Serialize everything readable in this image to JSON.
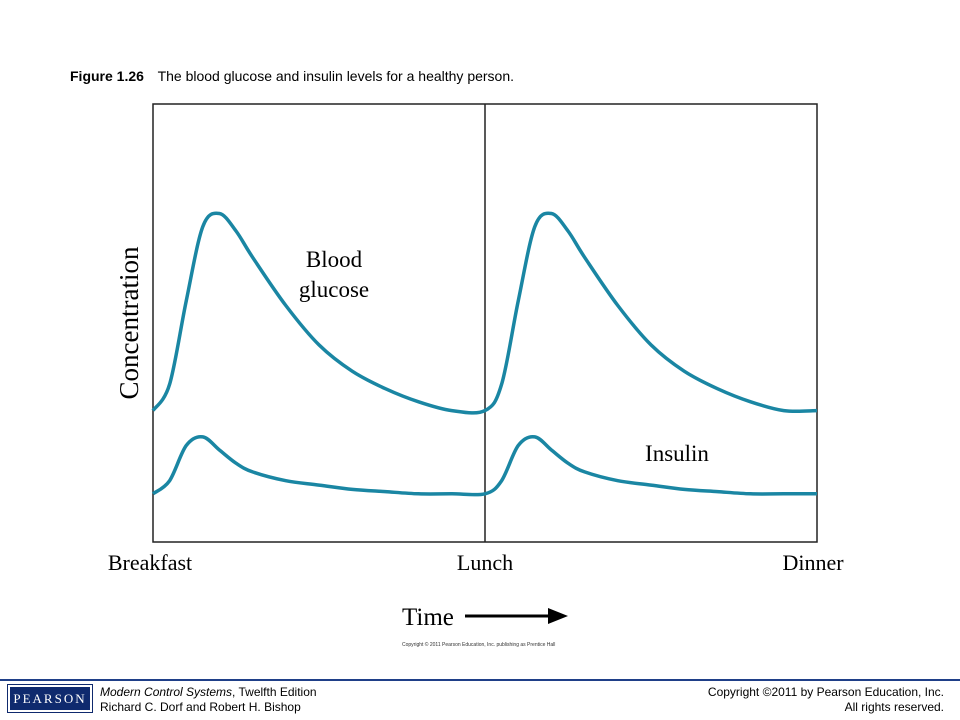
{
  "caption": {
    "figure_number": "Figure 1.26",
    "text": "The blood glucose and insulin levels for a healthy person."
  },
  "chart_data": {
    "type": "line",
    "ylabel": "Concentration",
    "xlabel": "Time",
    "categories": [
      "Breakfast",
      "Lunch",
      "Dinner"
    ],
    "x_range": [
      0,
      2
    ],
    "y_range": [
      0,
      1
    ],
    "grid": false,
    "divider_at": 1,
    "series": [
      {
        "name": "Blood glucose",
        "label_lines": [
          "Blood",
          "glucose"
        ],
        "color": "#1a86a3",
        "x": [
          0.0,
          0.05,
          0.1,
          0.15,
          0.2,
          0.25,
          0.3,
          0.4,
          0.5,
          0.6,
          0.7,
          0.8,
          0.9,
          1.0,
          1.05,
          1.1,
          1.15,
          1.2,
          1.25,
          1.3,
          1.4,
          1.5,
          1.6,
          1.7,
          1.8,
          1.9,
          2.0
        ],
        "y": [
          0.3,
          0.36,
          0.55,
          0.72,
          0.75,
          0.71,
          0.65,
          0.54,
          0.45,
          0.39,
          0.35,
          0.32,
          0.3,
          0.3,
          0.36,
          0.55,
          0.72,
          0.75,
          0.71,
          0.65,
          0.54,
          0.45,
          0.39,
          0.35,
          0.32,
          0.3,
          0.3
        ]
      },
      {
        "name": "Insulin",
        "label_lines": [
          "Insulin"
        ],
        "color": "#1a86a3",
        "x": [
          0.0,
          0.05,
          0.1,
          0.15,
          0.2,
          0.25,
          0.3,
          0.4,
          0.5,
          0.6,
          0.7,
          0.8,
          0.9,
          1.0,
          1.05,
          1.1,
          1.15,
          1.2,
          1.25,
          1.3,
          1.4,
          1.5,
          1.6,
          1.7,
          1.8,
          1.9,
          2.0
        ],
        "y": [
          0.11,
          0.14,
          0.22,
          0.24,
          0.21,
          0.18,
          0.16,
          0.14,
          0.13,
          0.12,
          0.115,
          0.11,
          0.11,
          0.11,
          0.14,
          0.22,
          0.24,
          0.21,
          0.18,
          0.16,
          0.14,
          0.13,
          0.12,
          0.115,
          0.11,
          0.11,
          0.11
        ]
      }
    ]
  },
  "image_copyright": "Copyright © 2011 Pearson Education, Inc. publishing as Prentice Hall",
  "footer": {
    "logo_text": "PEARSON",
    "book_title": "Modern Control Systems",
    "edition": ", Twelfth Edition",
    "authors": "Richard C. Dorf and Robert H. Bishop",
    "copyright": "Copyright ©2011 by Pearson Education, Inc.",
    "rights": "All rights reserved."
  }
}
